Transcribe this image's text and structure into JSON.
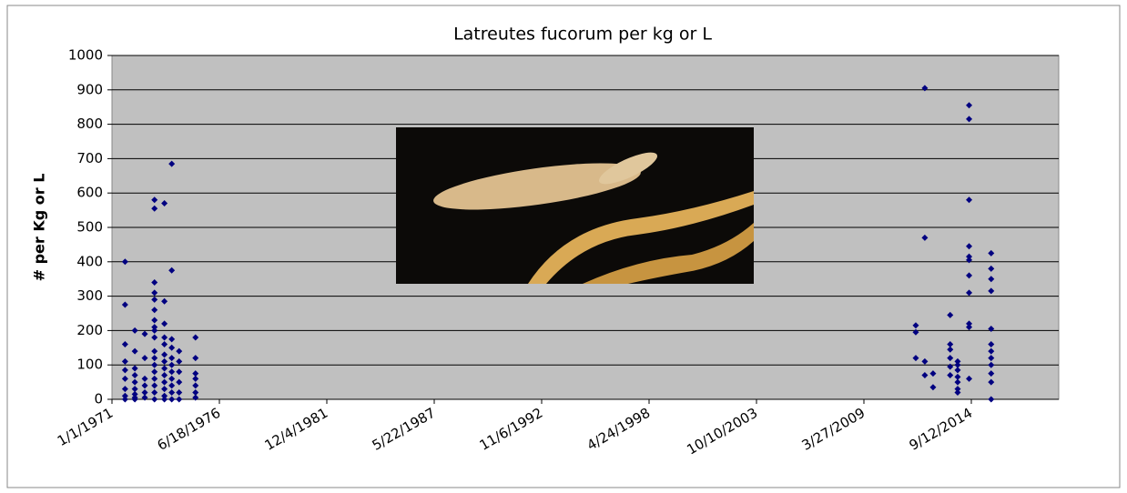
{
  "chart_data": {
    "type": "scatter",
    "title": "Latreutes fucorum per kg or L",
    "y_label": "# per Kg or L",
    "color": "#000080",
    "grid": true,
    "ylim": [
      0,
      1000
    ],
    "yticks": [
      0,
      100,
      200,
      300,
      400,
      500,
      600,
      700,
      800,
      900,
      1000
    ],
    "xlim": [
      "1971-01-01",
      "2019-02-21"
    ],
    "xticks": [
      {
        "value": "1971-01-01",
        "label": "1/1/1971"
      },
      {
        "value": "1976-06-18",
        "label": "6/18/1976"
      },
      {
        "value": "1981-12-04",
        "label": "12/4/1981"
      },
      {
        "value": "1987-05-22",
        "label": "5/22/1987"
      },
      {
        "value": "1992-11-06",
        "label": "11/6/1992"
      },
      {
        "value": "1998-04-24",
        "label": "4/24/1998"
      },
      {
        "value": "2003-10-10",
        "label": "10/10/2003"
      },
      {
        "value": "2009-03-27",
        "label": "3/27/2009"
      },
      {
        "value": "2014-09-12",
        "label": "9/12/2014"
      }
    ],
    "x": [
      "1971-09-01",
      "1971-09-01",
      "1971-09-01",
      "1971-09-01",
      "1971-09-01",
      "1971-09-01",
      "1971-09-01",
      "1971-09-01",
      "1971-09-01",
      "1972-03-01",
      "1972-03-01",
      "1972-03-01",
      "1972-03-01",
      "1972-03-01",
      "1972-03-01",
      "1972-03-01",
      "1972-03-01",
      "1972-03-01",
      "1972-09-01",
      "1972-09-01",
      "1972-09-01",
      "1972-09-01",
      "1972-09-01",
      "1972-09-01",
      "1973-03-01",
      "1973-03-01",
      "1973-03-01",
      "1973-03-01",
      "1973-03-01",
      "1973-03-01",
      "1973-03-01",
      "1973-03-01",
      "1973-03-01",
      "1973-03-01",
      "1973-03-01",
      "1973-03-01",
      "1973-03-01",
      "1973-03-01",
      "1973-03-01",
      "1973-03-01",
      "1973-03-01",
      "1973-03-01",
      "1973-09-01",
      "1973-09-01",
      "1973-09-01",
      "1973-09-01",
      "1973-09-01",
      "1973-09-01",
      "1973-09-01",
      "1973-09-01",
      "1973-09-01",
      "1973-09-01",
      "1973-09-01",
      "1973-09-01",
      "1973-09-01",
      "1974-01-15",
      "1974-01-15",
      "1974-01-15",
      "1974-01-15",
      "1974-01-15",
      "1974-01-15",
      "1974-01-15",
      "1974-01-15",
      "1974-01-15",
      "1974-01-15",
      "1974-01-15",
      "1974-06-01",
      "1974-06-01",
      "1974-06-01",
      "1974-06-01",
      "1974-06-01",
      "1974-06-01",
      "1975-04-01",
      "1975-04-01",
      "1975-04-01",
      "1975-04-01",
      "1975-04-01",
      "1975-04-01",
      "1975-04-01",
      "2011-11-15",
      "2011-11-15",
      "2011-11-15",
      "2012-05-01",
      "2012-05-01",
      "2012-05-01",
      "2012-05-01",
      "2012-10-01",
      "2012-10-01",
      "2013-08-15",
      "2013-08-15",
      "2013-08-15",
      "2013-08-15",
      "2013-08-15",
      "2013-08-15",
      "2014-01-01",
      "2014-01-01",
      "2014-01-01",
      "2014-01-01",
      "2014-01-01",
      "2014-01-01",
      "2014-01-01",
      "2014-08-01",
      "2014-08-01",
      "2014-08-01",
      "2014-08-01",
      "2014-08-01",
      "2014-08-01",
      "2014-08-01",
      "2014-08-01",
      "2014-08-01",
      "2014-08-01",
      "2014-08-01",
      "2015-09-15",
      "2015-09-15",
      "2015-09-15",
      "2015-09-15",
      "2015-09-15",
      "2015-09-15",
      "2015-09-15",
      "2015-09-15",
      "2015-09-15",
      "2015-09-15",
      "2015-09-15",
      "2015-09-15"
    ],
    "values": [
      400,
      275,
      160,
      110,
      85,
      60,
      30,
      10,
      0,
      200,
      140,
      90,
      70,
      50,
      30,
      15,
      5,
      0,
      190,
      120,
      60,
      40,
      20,
      5,
      580,
      555,
      340,
      310,
      290,
      260,
      230,
      210,
      200,
      180,
      140,
      120,
      100,
      80,
      60,
      40,
      20,
      0,
      570,
      285,
      220,
      180,
      160,
      130,
      110,
      90,
      70,
      50,
      30,
      10,
      0,
      685,
      375,
      175,
      150,
      120,
      100,
      80,
      60,
      40,
      20,
      0,
      140,
      110,
      80,
      50,
      20,
      0,
      180,
      120,
      75,
      60,
      40,
      20,
      5,
      215,
      195,
      120,
      905,
      470,
      110,
      70,
      75,
      35,
      245,
      160,
      145,
      120,
      95,
      70,
      110,
      100,
      85,
      65,
      50,
      30,
      20,
      855,
      815,
      580,
      445,
      415,
      405,
      360,
      310,
      220,
      210,
      60,
      425,
      380,
      350,
      315,
      205,
      160,
      140,
      120,
      100,
      75,
      50,
      0
    ]
  }
}
